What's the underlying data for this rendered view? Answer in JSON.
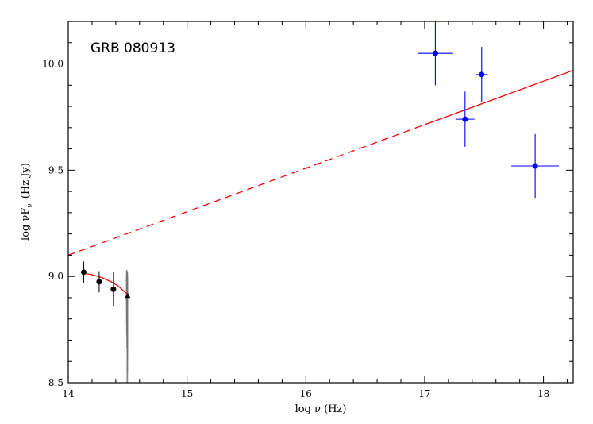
{
  "chart_data": {
    "type": "scatter",
    "title": "GRB 080913",
    "xlabel": "log ν (Hz)",
    "ylabel_parts": {
      "prefix": "log νF",
      "subscript": "ν",
      "suffix": "(Hz Jy)"
    },
    "xlim": [
      14,
      18.25
    ],
    "ylim": [
      8.5,
      10.2
    ],
    "xticks": [
      14,
      15,
      16,
      17,
      18
    ],
    "yticks": [
      8.5,
      9.0,
      9.5,
      10.0
    ],
    "xtick_labels": [
      "14",
      "15",
      "16",
      "17",
      "18"
    ],
    "ytick_labels": [
      "8.5",
      "9.0",
      "9.5",
      "10.0"
    ],
    "grid": false,
    "colors": {
      "xray": "#0000ff",
      "model": "#ff0000",
      "optical": "#000000",
      "spectrum": "#777777"
    },
    "series": [
      {
        "kind": "optical-points",
        "points": [
          {
            "x": 14.13,
            "y": 9.02,
            "yerr": 0.05
          },
          {
            "x": 14.26,
            "y": 8.975,
            "yerr": 0.05
          },
          {
            "x": 14.38,
            "y": 8.94,
            "yerr": 0.08
          }
        ]
      },
      {
        "kind": "optical-triangle",
        "points": [
          {
            "x": 14.5,
            "y": 8.91
          }
        ]
      },
      {
        "kind": "xray-points",
        "points": [
          {
            "x": 17.09,
            "y": 10.05,
            "xerr": 0.15,
            "yerr": 0.15
          },
          {
            "x": 17.34,
            "y": 9.74,
            "xerr": 0.08,
            "yerr": 0.13
          },
          {
            "x": 17.48,
            "y": 9.95,
            "xerr": 0.05,
            "yerr": 0.13
          },
          {
            "x": 17.93,
            "y": 9.52,
            "xerr": 0.2,
            "yerr": 0.15
          }
        ]
      },
      {
        "kind": "model-solid-low",
        "x": [
          14.13,
          14.2,
          14.28,
          14.36,
          14.42,
          14.47,
          14.5
        ],
        "y": [
          9.015,
          9.008,
          8.995,
          8.975,
          8.955,
          8.93,
          8.915
        ]
      },
      {
        "kind": "model-power-law",
        "x": [
          14.0,
          18.25
        ],
        "y": [
          9.1,
          9.97
        ],
        "dashed_until_x": 17.0
      },
      {
        "kind": "optical-spectrum",
        "x": 14.495,
        "y_low": 8.5,
        "y_high": 9.03
      }
    ]
  }
}
